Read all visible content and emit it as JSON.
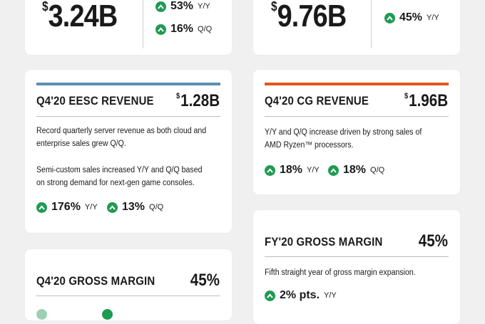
{
  "top_left": {
    "currency": "$",
    "amount": "3.24B",
    "stats": [
      {
        "pct": "53%",
        "period": "Y/Y"
      },
      {
        "pct": "16%",
        "period": "Q/Q"
      }
    ]
  },
  "top_right": {
    "currency": "$",
    "amount": "9.76B",
    "stats": [
      {
        "pct": "45%",
        "period": "Y/Y"
      }
    ]
  },
  "eesc": {
    "title": "Q4'20 EESC REVENUE",
    "currency": "$",
    "amount": "1.28B",
    "accent_color": "#5b8fb3",
    "para1": "Record quarterly server revenue as both cloud and enterprise sales grew Q/Q.",
    "para2": "Semi-custom sales increased Y/Y and Q/Q based on strong demand for next-gen game consoles.",
    "stats": [
      {
        "pct": "176%",
        "period": "Y/Y"
      },
      {
        "pct": "13%",
        "period": "Q/Q"
      }
    ]
  },
  "cg": {
    "title": "Q4'20 CG REVENUE",
    "currency": "$",
    "amount": "1.96B",
    "accent_color": "#e2571e",
    "para1": "Y/Y and Q/Q increase driven by strong sales of AMD Ryzen™ processors.",
    "stats": [
      {
        "pct": "18%",
        "period": "Y/Y"
      },
      {
        "pct": "18%",
        "period": "Q/Q"
      }
    ]
  },
  "q4_margin": {
    "title": "Q4'20 GROSS MARGIN",
    "value": "45%"
  },
  "fy_margin": {
    "title": "FY'20 GROSS MARGIN",
    "value": "45%",
    "para1": "Fifth straight year of gross margin expansion.",
    "stats": [
      {
        "pct": "2% pts.",
        "period": "Y/Y"
      }
    ]
  },
  "colors": {
    "up_green": "#1e9b52",
    "background": "#f0f0f0"
  },
  "icons": {
    "up_arrow": "chevron-up-in-circle"
  }
}
